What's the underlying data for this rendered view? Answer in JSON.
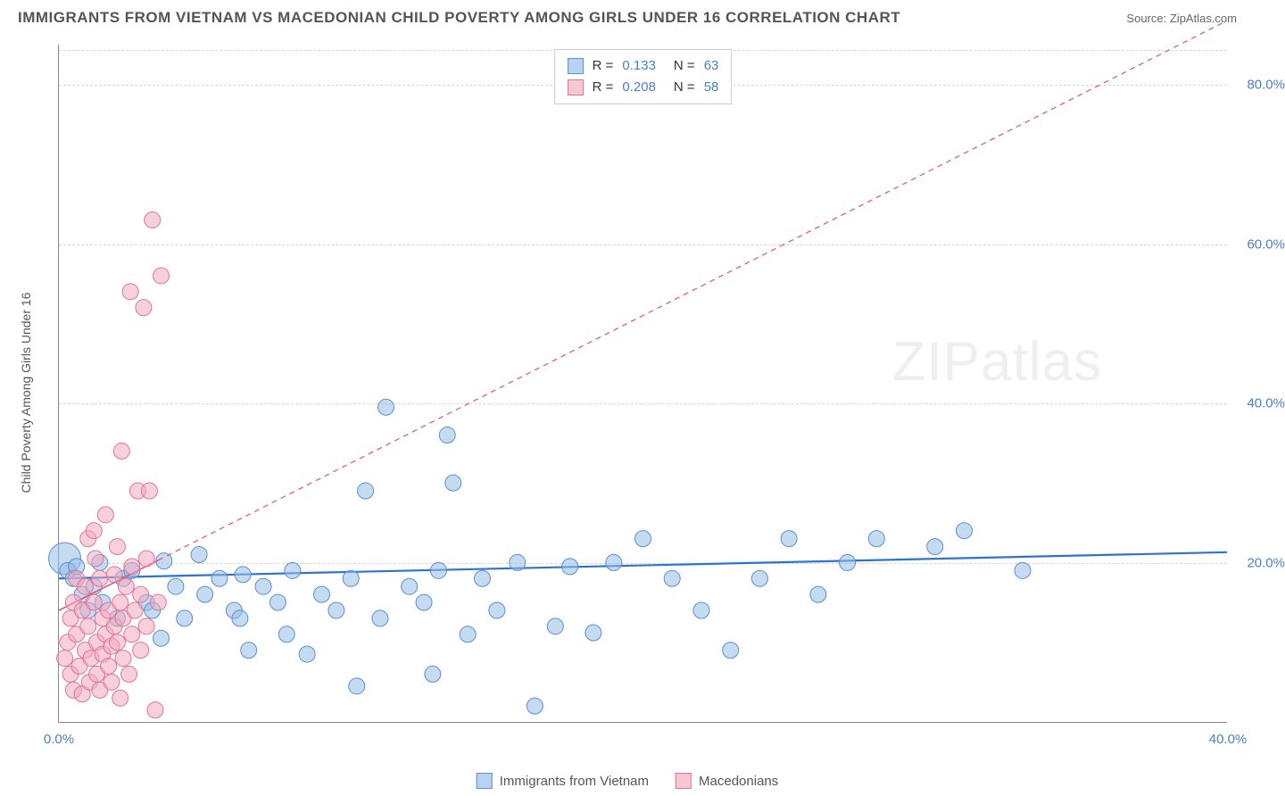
{
  "title": "IMMIGRANTS FROM VIETNAM VS MACEDONIAN CHILD POVERTY AMONG GIRLS UNDER 16 CORRELATION CHART",
  "source_label": "Source:",
  "source_name": "ZipAtlas.com",
  "ylabel": "Child Poverty Among Girls Under 16",
  "watermark_a": "ZIP",
  "watermark_b": "atlas",
  "chart": {
    "type": "scatter",
    "background_color": "#ffffff",
    "grid_color": "#d5d5d5",
    "axis_color": "#888888",
    "tick_label_color": "#4a7fc5",
    "text_color": "#555555",
    "xlim": [
      0,
      40
    ],
    "ylim": [
      0,
      85
    ],
    "xticks": [
      {
        "v": 0,
        "label": "0.0%"
      },
      {
        "v": 40,
        "label": "40.0%"
      }
    ],
    "yticks": [
      {
        "v": 20,
        "label": "20.0%"
      },
      {
        "v": 40,
        "label": "40.0%"
      },
      {
        "v": 60,
        "label": "60.0%"
      },
      {
        "v": 80,
        "label": "80.0%"
      }
    ],
    "legend_top": [
      {
        "swatch_fill": "#b9d2ef",
        "swatch_stroke": "#5a8fd0",
        "r_label": "R =",
        "r_val": "0.133",
        "n_label": "N =",
        "n_val": "63"
      },
      {
        "swatch_fill": "#f7c7d2",
        "swatch_stroke": "#e27495",
        "r_label": "R =",
        "r_val": "0.208",
        "n_label": "N =",
        "n_val": "58"
      }
    ],
    "legend_bottom": [
      {
        "swatch_fill": "#b9d2ef",
        "swatch_stroke": "#5a8fd0",
        "text": "Immigrants from Vietnam"
      },
      {
        "swatch_fill": "#f7c7d2",
        "swatch_stroke": "#e27495",
        "text": "Macedonians"
      }
    ],
    "series": [
      {
        "name": "vietnam",
        "marker_fill": "rgba(150,190,230,0.55)",
        "marker_stroke": "#5a8fd0",
        "marker_r": 9,
        "trend": {
          "x1": 0,
          "y1": 18,
          "x2": 40,
          "y2": 21.3,
          "stroke": "#2d73d2",
          "width": 2.2,
          "dash": "none",
          "solid_to_x": 40
        },
        "points": [
          [
            0.3,
            19
          ],
          [
            0.5,
            18
          ],
          [
            0.6,
            19.5
          ],
          [
            0.8,
            16
          ],
          [
            1,
            14
          ],
          [
            1.2,
            17
          ],
          [
            1.4,
            20
          ],
          [
            1.5,
            15
          ],
          [
            2,
            13
          ],
          [
            2.2,
            18
          ],
          [
            2.5,
            19
          ],
          [
            3,
            15
          ],
          [
            3.2,
            14
          ],
          [
            3.5,
            10.5
          ],
          [
            3.6,
            20.2
          ],
          [
            4,
            17
          ],
          [
            4.3,
            13
          ],
          [
            4.8,
            21
          ],
          [
            5,
            16
          ],
          [
            5.5,
            18
          ],
          [
            6,
            14
          ],
          [
            6.2,
            13
          ],
          [
            6.3,
            18.5
          ],
          [
            6.5,
            9
          ],
          [
            7,
            17
          ],
          [
            7.5,
            15
          ],
          [
            7.8,
            11
          ],
          [
            8,
            19
          ],
          [
            8.5,
            8.5
          ],
          [
            9,
            16
          ],
          [
            9.5,
            14
          ],
          [
            10,
            18
          ],
          [
            10.2,
            4.5
          ],
          [
            10.5,
            29
          ],
          [
            11,
            13
          ],
          [
            11.2,
            39.5
          ],
          [
            12,
            17
          ],
          [
            12.5,
            15
          ],
          [
            12.8,
            6
          ],
          [
            13,
            19
          ],
          [
            13.3,
            36
          ],
          [
            13.5,
            30
          ],
          [
            14,
            11
          ],
          [
            14.5,
            18
          ],
          [
            15,
            14
          ],
          [
            15.7,
            20
          ],
          [
            16.3,
            2
          ],
          [
            17,
            12
          ],
          [
            17.5,
            19.5
          ],
          [
            18.3,
            11.2
          ],
          [
            19,
            20
          ],
          [
            20,
            23
          ],
          [
            21,
            18
          ],
          [
            22,
            14
          ],
          [
            23,
            9
          ],
          [
            24,
            18
          ],
          [
            25,
            23
          ],
          [
            26,
            16
          ],
          [
            27,
            20
          ],
          [
            28,
            23
          ],
          [
            30,
            22
          ],
          [
            31,
            24
          ],
          [
            33,
            19
          ]
        ],
        "big_point": {
          "x": 0.2,
          "y": 20.5,
          "r": 18
        }
      },
      {
        "name": "macedonians",
        "marker_fill": "rgba(240,170,190,0.55)",
        "marker_stroke": "#e27495",
        "marker_r": 9,
        "trend": {
          "x1": 0,
          "y1": 14,
          "x2": 40,
          "y2": 88,
          "stroke": "#e05a7e",
          "width": 1.6,
          "dash": "6,5",
          "solid_to_x": 3.4
        },
        "points": [
          [
            0.2,
            8
          ],
          [
            0.3,
            10
          ],
          [
            0.4,
            13
          ],
          [
            0.4,
            6
          ],
          [
            0.5,
            15
          ],
          [
            0.5,
            4
          ],
          [
            0.6,
            11
          ],
          [
            0.6,
            18
          ],
          [
            0.7,
            7
          ],
          [
            0.8,
            14
          ],
          [
            0.8,
            3.5
          ],
          [
            0.9,
            17
          ],
          [
            0.9,
            9
          ],
          [
            1.0,
            12
          ],
          [
            1.0,
            23
          ],
          [
            1.05,
            5
          ],
          [
            1.1,
            8
          ],
          [
            1.2,
            24
          ],
          [
            1.2,
            15
          ],
          [
            1.25,
            20.5
          ],
          [
            1.3,
            6
          ],
          [
            1.3,
            10
          ],
          [
            1.4,
            18
          ],
          [
            1.4,
            4
          ],
          [
            1.5,
            13
          ],
          [
            1.5,
            8.5
          ],
          [
            1.6,
            11
          ],
          [
            1.6,
            26
          ],
          [
            1.7,
            7
          ],
          [
            1.7,
            14
          ],
          [
            1.8,
            9.5
          ],
          [
            1.8,
            5
          ],
          [
            1.9,
            12
          ],
          [
            1.9,
            18.5
          ],
          [
            2.0,
            22
          ],
          [
            2.0,
            10
          ],
          [
            2.1,
            15
          ],
          [
            2.1,
            3
          ],
          [
            2.15,
            34
          ],
          [
            2.2,
            8
          ],
          [
            2.2,
            13
          ],
          [
            2.3,
            17
          ],
          [
            2.4,
            6
          ],
          [
            2.45,
            54
          ],
          [
            2.5,
            11
          ],
          [
            2.5,
            19.5
          ],
          [
            2.6,
            14
          ],
          [
            2.7,
            29
          ],
          [
            2.8,
            9
          ],
          [
            2.8,
            16
          ],
          [
            2.9,
            52
          ],
          [
            3.0,
            20.5
          ],
          [
            3.0,
            12
          ],
          [
            3.1,
            29
          ],
          [
            3.2,
            63
          ],
          [
            3.3,
            1.5
          ],
          [
            3.4,
            15
          ],
          [
            3.5,
            56
          ]
        ]
      }
    ]
  }
}
